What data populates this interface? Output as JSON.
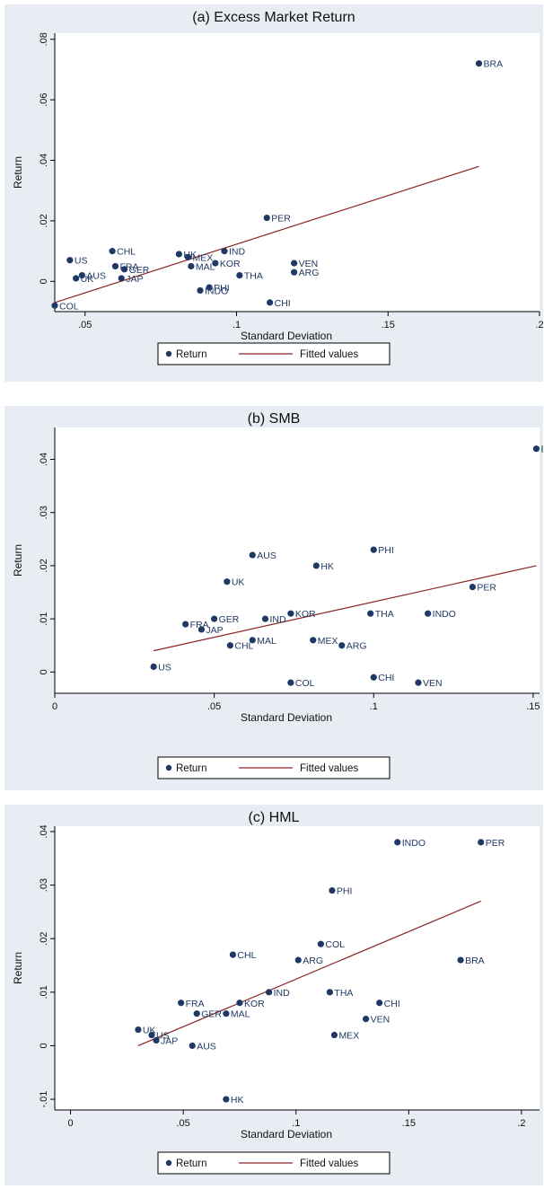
{
  "chart_data": [
    {
      "type": "scatter",
      "title": "(a) Excess Market Return",
      "xlabel": "Standard Deviation",
      "ylabel": "Return",
      "xlim": [
        0.04,
        0.2
      ],
      "ylim": [
        -0.01,
        0.082
      ],
      "x_ticks": [
        0.05,
        0.1,
        0.15,
        0.2
      ],
      "x_tick_labels": [
        ".05",
        ".1",
        ".15",
        ".2"
      ],
      "y_ticks": [
        0,
        0.02,
        0.04,
        0.06,
        0.08
      ],
      "y_tick_labels": [
        "0",
        ".02",
        ".04",
        ".06",
        ".08"
      ],
      "legend": [
        "Return",
        "Fitted values"
      ],
      "legend_position": "bottom",
      "series": [
        {
          "name": "Return",
          "points": [
            {
              "label": "BRA",
              "x": 0.18,
              "y": 0.072
            },
            {
              "label": "PER",
              "x": 0.11,
              "y": 0.021
            },
            {
              "label": "CHL",
              "x": 0.059,
              "y": 0.01
            },
            {
              "label": "US",
              "x": 0.045,
              "y": 0.007
            },
            {
              "label": "FRA",
              "x": 0.06,
              "y": 0.005
            },
            {
              "label": "GER",
              "x": 0.063,
              "y": 0.004
            },
            {
              "label": "AUS",
              "x": 0.049,
              "y": 0.002
            },
            {
              "label": "UK",
              "x": 0.047,
              "y": 0.001
            },
            {
              "label": "JAP",
              "x": 0.062,
              "y": 0.001
            },
            {
              "label": "COL",
              "x": 0.04,
              "y": -0.008
            },
            {
              "label": "HK",
              "x": 0.081,
              "y": 0.009
            },
            {
              "label": "MEX",
              "x": 0.084,
              "y": 0.008
            },
            {
              "label": "IND",
              "x": 0.096,
              "y": 0.01
            },
            {
              "label": "KOR",
              "x": 0.093,
              "y": 0.006
            },
            {
              "label": "MAL",
              "x": 0.085,
              "y": 0.005
            },
            {
              "label": "THA",
              "x": 0.101,
              "y": 0.002
            },
            {
              "label": "PHI",
              "x": 0.091,
              "y": -0.002
            },
            {
              "label": "INDO",
              "x": 0.088,
              "y": -0.003
            },
            {
              "label": "VEN",
              "x": 0.119,
              "y": 0.006
            },
            {
              "label": "ARG",
              "x": 0.119,
              "y": 0.003
            },
            {
              "label": "CHI",
              "x": 0.111,
              "y": -0.007
            }
          ]
        },
        {
          "name": "Fitted values",
          "line": [
            [
              0.04,
              -0.007
            ],
            [
              0.18,
              0.038
            ]
          ]
        }
      ]
    },
    {
      "type": "scatter",
      "title": "(b) SMB",
      "xlabel": "Standard Deviation",
      "ylabel": "Return",
      "xlim": [
        0,
        0.152
      ],
      "ylim": [
        -0.004,
        0.046
      ],
      "x_ticks": [
        0,
        0.05,
        0.1,
        0.15
      ],
      "x_tick_labels": [
        "0",
        ".05",
        ".1",
        ".15"
      ],
      "y_ticks": [
        0,
        0.01,
        0.02,
        0.03,
        0.04
      ],
      "y_tick_labels": [
        "0",
        ".01",
        ".02",
        ".03",
        ".04"
      ],
      "legend": [
        "Return",
        "Fitted values"
      ],
      "legend_position": "bottom",
      "series": [
        {
          "name": "Return",
          "points": [
            {
              "label": "BF",
              "x": 0.151,
              "y": 0.042
            },
            {
              "label": "PHI",
              "x": 0.1,
              "y": 0.023
            },
            {
              "label": "AUS",
              "x": 0.062,
              "y": 0.022
            },
            {
              "label": "HK",
              "x": 0.082,
              "y": 0.02
            },
            {
              "label": "UK",
              "x": 0.054,
              "y": 0.017
            },
            {
              "label": "PER",
              "x": 0.131,
              "y": 0.016
            },
            {
              "label": "THA",
              "x": 0.099,
              "y": 0.011
            },
            {
              "label": "INDO",
              "x": 0.117,
              "y": 0.011
            },
            {
              "label": "KOR",
              "x": 0.074,
              "y": 0.011
            },
            {
              "label": "IND",
              "x": 0.066,
              "y": 0.01
            },
            {
              "label": "GER",
              "x": 0.05,
              "y": 0.01
            },
            {
              "label": "FRA",
              "x": 0.041,
              "y": 0.009
            },
            {
              "label": "JAP",
              "x": 0.046,
              "y": 0.008
            },
            {
              "label": "MAL",
              "x": 0.062,
              "y": 0.006
            },
            {
              "label": "MEX",
              "x": 0.081,
              "y": 0.006
            },
            {
              "label": "ARG",
              "x": 0.09,
              "y": 0.005
            },
            {
              "label": "CHL",
              "x": 0.055,
              "y": 0.005
            },
            {
              "label": "US",
              "x": 0.031,
              "y": 0.001
            },
            {
              "label": "COL",
              "x": 0.074,
              "y": -0.002
            },
            {
              "label": "CHI",
              "x": 0.1,
              "y": -0.001
            },
            {
              "label": "VEN",
              "x": 0.114,
              "y": -0.002
            }
          ]
        },
        {
          "name": "Fitted values",
          "line": [
            [
              0.031,
              0.004
            ],
            [
              0.151,
              0.02
            ]
          ]
        }
      ]
    },
    {
      "type": "scatter",
      "title": "(c) HML",
      "xlabel": "Standard Deviation",
      "ylabel": "Return",
      "xlim": [
        -0.007,
        0.208
      ],
      "ylim": [
        -0.012,
        0.041
      ],
      "x_ticks": [
        0,
        0.05,
        0.1,
        0.15,
        0.2
      ],
      "x_tick_labels": [
        "0",
        ".05",
        ".1",
        ".15",
        ".2"
      ],
      "y_ticks": [
        -0.01,
        0,
        0.01,
        0.02,
        0.03,
        0.04
      ],
      "y_tick_labels": [
        "-.01",
        "0",
        ".01",
        ".02",
        ".03",
        ".04"
      ],
      "legend": [
        "Return",
        "Fitted values"
      ],
      "legend_position": "bottom",
      "series": [
        {
          "name": "Return",
          "points": [
            {
              "label": "INDO",
              "x": 0.145,
              "y": 0.038
            },
            {
              "label": "PER",
              "x": 0.182,
              "y": 0.038
            },
            {
              "label": "PHI",
              "x": 0.116,
              "y": 0.029
            },
            {
              "label": "COL",
              "x": 0.111,
              "y": 0.019
            },
            {
              "label": "CHL",
              "x": 0.072,
              "y": 0.017
            },
            {
              "label": "ARG",
              "x": 0.101,
              "y": 0.016
            },
            {
              "label": "BRA",
              "x": 0.173,
              "y": 0.016
            },
            {
              "label": "IND",
              "x": 0.088,
              "y": 0.01
            },
            {
              "label": "THA",
              "x": 0.115,
              "y": 0.01
            },
            {
              "label": "FRA",
              "x": 0.049,
              "y": 0.008
            },
            {
              "label": "KOR",
              "x": 0.075,
              "y": 0.008
            },
            {
              "label": "CHI",
              "x": 0.137,
              "y": 0.008
            },
            {
              "label": "GER",
              "x": 0.056,
              "y": 0.006
            },
            {
              "label": "MAL",
              "x": 0.069,
              "y": 0.006
            },
            {
              "label": "VEN",
              "x": 0.131,
              "y": 0.005
            },
            {
              "label": "UK",
              "x": 0.03,
              "y": 0.003
            },
            {
              "label": "US",
              "x": 0.036,
              "y": 0.002
            },
            {
              "label": "JAP",
              "x": 0.038,
              "y": 0.001
            },
            {
              "label": "MEX",
              "x": 0.117,
              "y": 0.002
            },
            {
              "label": "AUS",
              "x": 0.054,
              "y": 0
            },
            {
              "label": "HK",
              "x": 0.069,
              "y": -0.01
            }
          ]
        },
        {
          "name": "Fitted values",
          "line": [
            [
              0.03,
              0
            ],
            [
              0.182,
              0.027
            ]
          ]
        }
      ]
    }
  ]
}
